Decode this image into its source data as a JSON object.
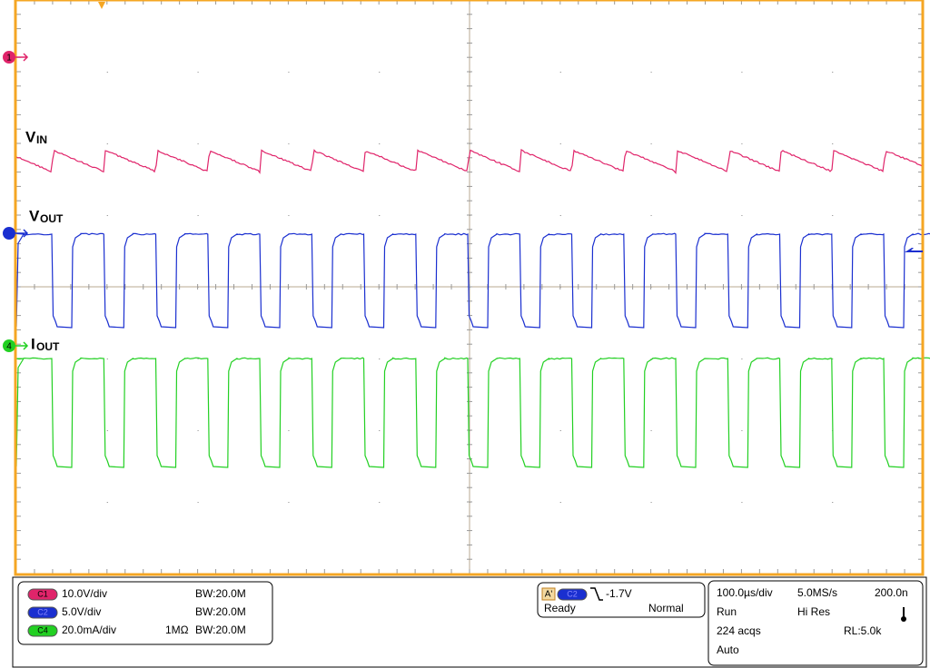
{
  "markers": {
    "ch1": "1",
    "ch4": "4"
  },
  "labels": [
    {
      "main": "V",
      "sub": "IN"
    },
    {
      "main": "V",
      "sub": "OUT"
    },
    {
      "main": "I",
      "sub": "OUT"
    }
  ],
  "channels": [
    {
      "badge": "C1",
      "scale": "10.0V/div",
      "bandwidth": "BW:20.0M"
    },
    {
      "badge": "C2",
      "scale": "5.0V/div",
      "bandwidth": "BW:20.0M"
    },
    {
      "badge": "C4",
      "scale": "20.0mA/div",
      "impedance": "1MΩ",
      "bandwidth": "BW:20.0M"
    }
  ],
  "trigger": {
    "badge_a": "A'",
    "badge_ch": "C2",
    "level": "-1.7V",
    "state": "Ready",
    "mode": "Normal"
  },
  "acquisition": {
    "timebase": "100.0µs/div",
    "sample_rate": "5.0MS/s",
    "resolution": "200.0n",
    "run": "Run",
    "mode": "Hi Res",
    "acqs": "224 acqs",
    "record_length": "RL:5.0k",
    "trigger_mode": "Auto"
  }
}
